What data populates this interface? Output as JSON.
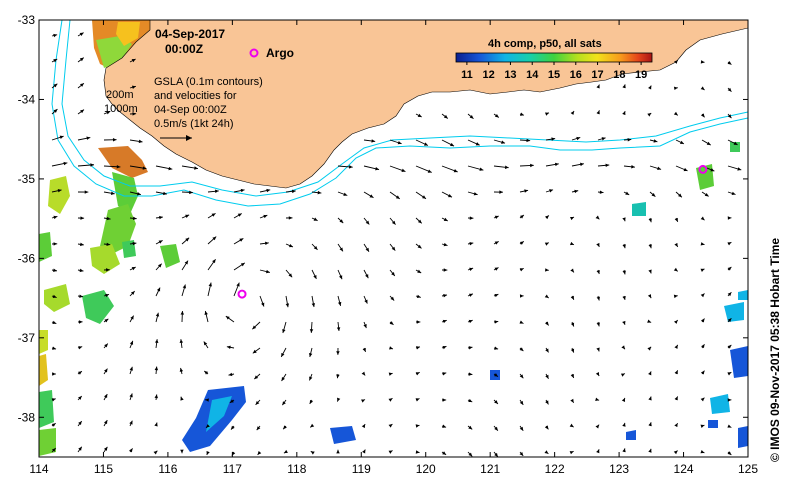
{
  "title": {
    "date": "04-Sep-2017",
    "time": "00:00Z"
  },
  "argo_label": "Argo",
  "contour_labels": {
    "shallow": "200m",
    "deep": "1000m"
  },
  "gsla_note": {
    "line1": "GSLA (0.1m contours)",
    "line2": "and velocities for",
    "line3": "04-Sep 00:00Z",
    "line4": "0.5m/s (1kt 24h)"
  },
  "colorbar": {
    "title": "4h comp, p50, all sats",
    "ticks": [
      "11",
      "12",
      "13",
      "14",
      "15",
      "16",
      "17",
      "18",
      "19"
    ],
    "range": [
      10.5,
      19.5
    ]
  },
  "side_text": "©  IMOS 09-Nov-2017 05:38 Hobart Time",
  "axes": {
    "lon_ticks": [
      "114",
      "115",
      "116",
      "117",
      "118",
      "119",
      "120",
      "121",
      "122",
      "123",
      "124",
      "125"
    ],
    "lat_ticks": [
      "-33",
      "-34",
      "-35",
      "-36",
      "-37",
      "-38"
    ],
    "lon_range": [
      114,
      125
    ],
    "lat_range": [
      -33,
      -38.5
    ]
  },
  "argo_floats": [
    {
      "lon": 117.15,
      "lat": -36.45
    },
    {
      "lon": 124.3,
      "lat": -34.88
    }
  ],
  "colors": {
    "land": "#F9C596",
    "contour": "#00CCEE",
    "argo": "#EE00EE",
    "frame": "#000000"
  }
}
